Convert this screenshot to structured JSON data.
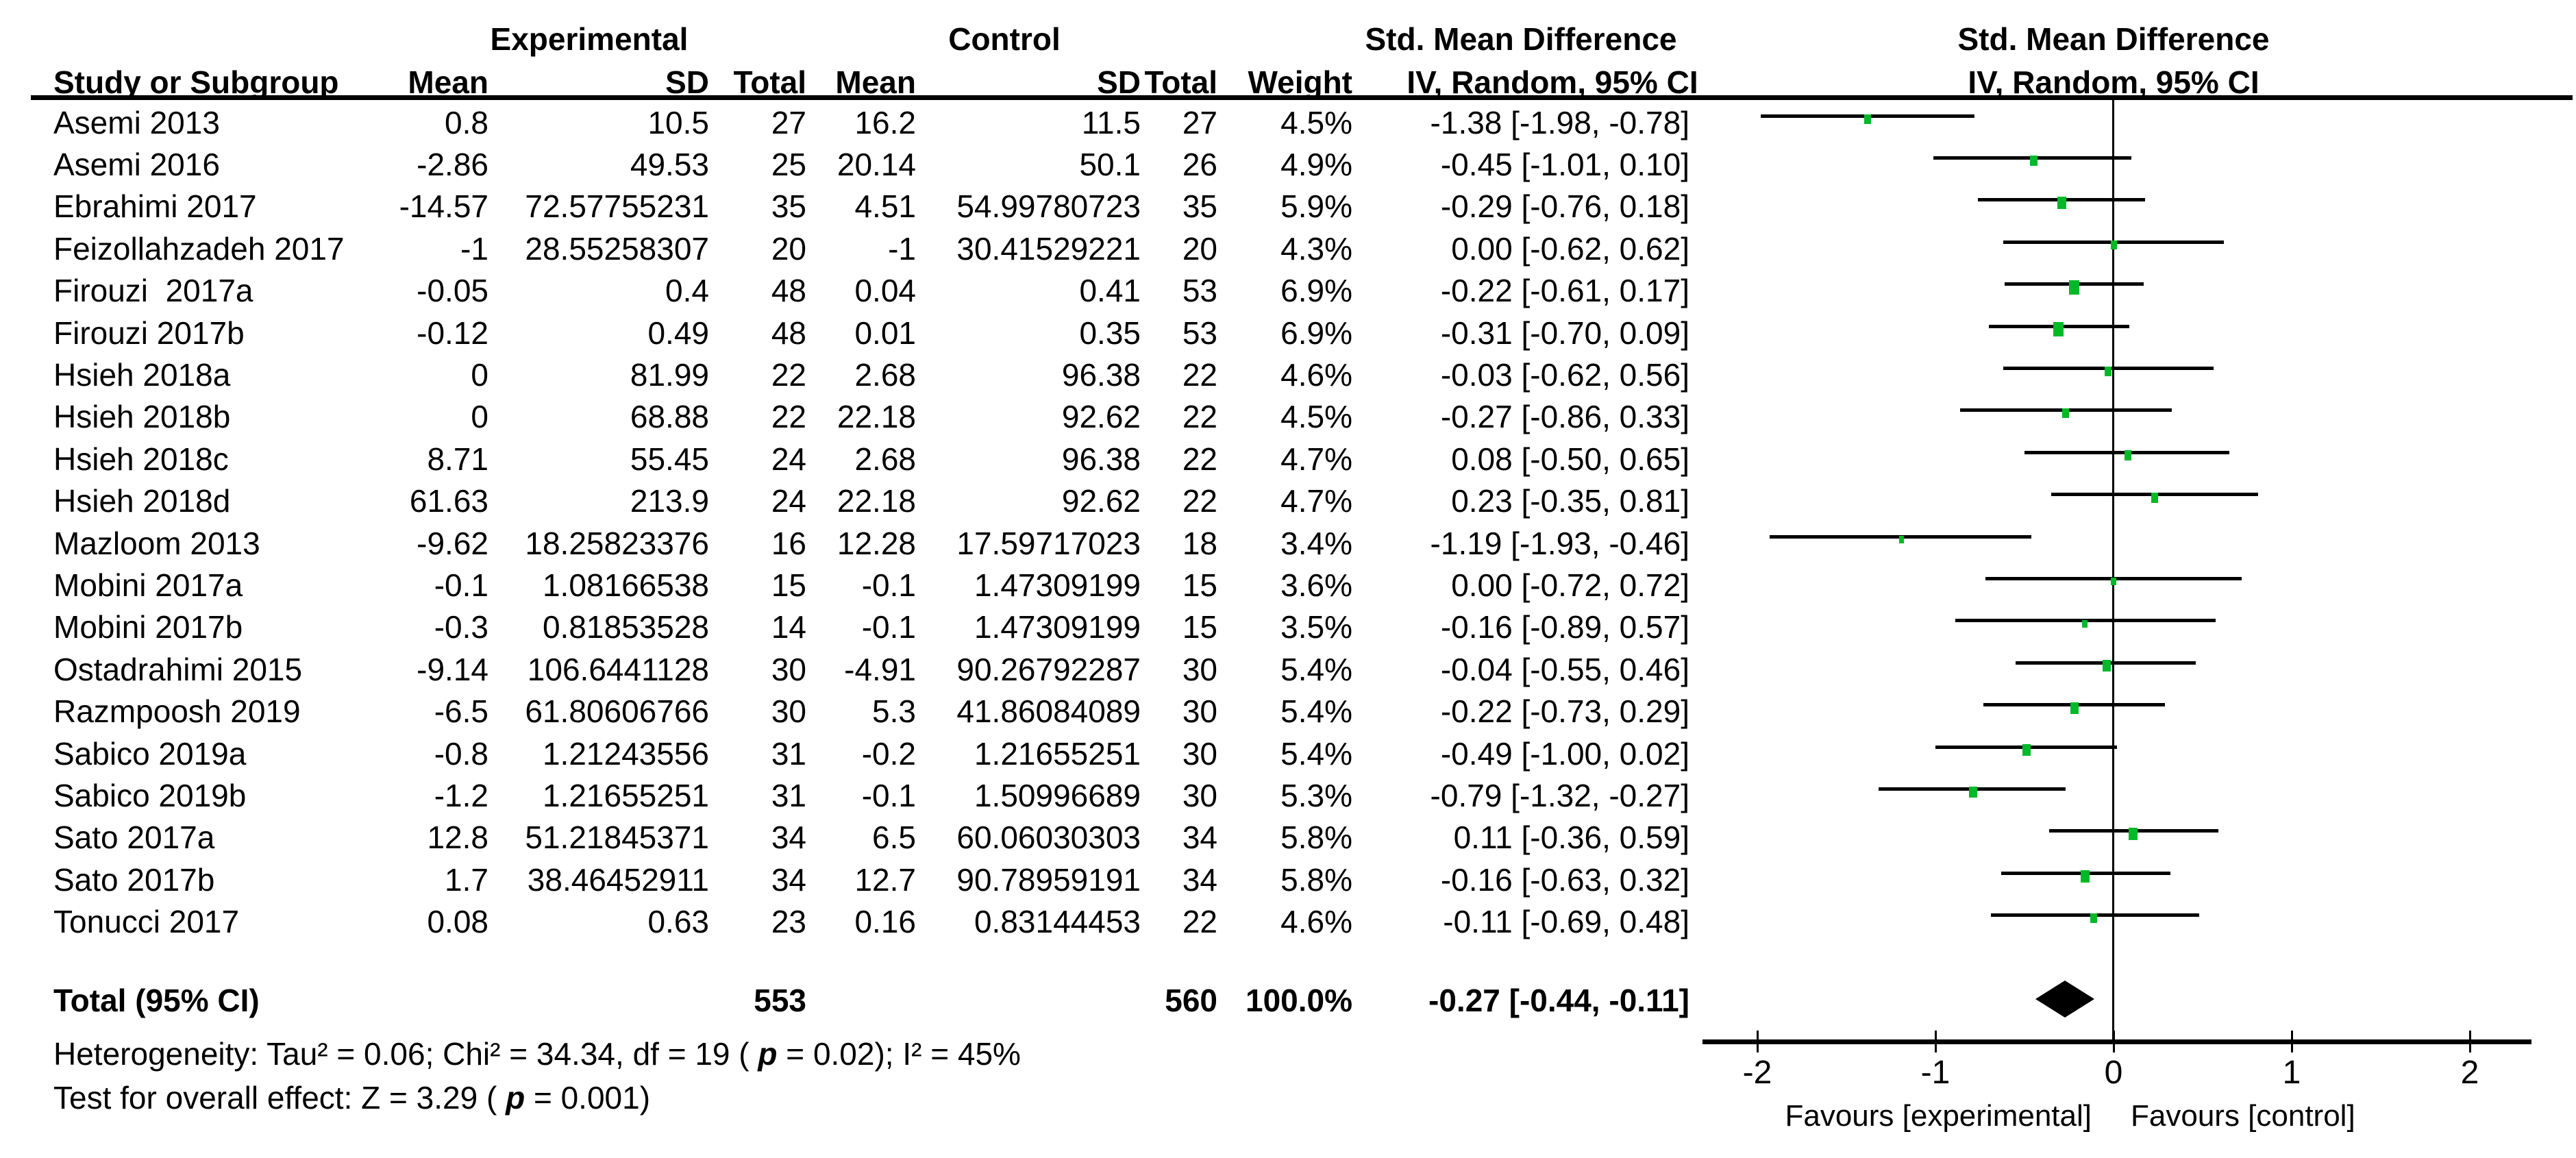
{
  "figure": {
    "group_headers": {
      "experimental": "Experimental",
      "control": "Control",
      "smd_left": "Std. Mean Difference",
      "smd_right": "Std. Mean Difference"
    },
    "column_headers": {
      "study": "Study or Subgroup",
      "mean_e": "Mean",
      "sd_e": "SD",
      "total_e": "Total",
      "mean_c": "Mean",
      "sd_c": "SD",
      "total_c": "Total",
      "weight": "Weight",
      "iv_left": "IV, Random, 95% CI",
      "iv_right": "IV, Random, 95% CI"
    },
    "heterogeneity": {
      "seg1": "Heterogeneity: Tau² = 0.06; Chi² = 34.34, df = 19 ( ",
      "p": "p",
      "seg2": " = 0.02); I² = 45%"
    },
    "overall_effect": {
      "seg1": "Test for overall effect: Z = 3.29 ( ",
      "p": "p",
      "seg2": " = 0.001)"
    },
    "colors": {
      "marker_green": "#00b928",
      "ink": "#000000"
    }
  },
  "chart_data": {
    "type": "forest",
    "effect_measure": "Std. Mean Difference (IV, Random, 95% CI)",
    "x_ticks": [
      -2,
      -1,
      0,
      1,
      2
    ],
    "xlim": [
      -2.3,
      2.35
    ],
    "favours_left": "Favours [experimental]",
    "favours_right": "Favours [control]",
    "studies": [
      {
        "name": "Asemi 2013",
        "mean_e": "0.8",
        "sd_e": "10.5",
        "total_e": "27",
        "mean_c": "16.2",
        "sd_c": "11.5",
        "total_c": "27",
        "weight": "4.5%",
        "weight_pct": 4.5,
        "smd_text": "-1.38 [-1.98, -0.78]",
        "est": -1.38,
        "lo": -1.98,
        "hi": -0.78
      },
      {
        "name": "Asemi 2016",
        "mean_e": "-2.86",
        "sd_e": "49.53",
        "total_e": "25",
        "mean_c": "20.14",
        "sd_c": "50.1",
        "total_c": "26",
        "weight": "4.9%",
        "weight_pct": 4.9,
        "smd_text": "-0.45 [-1.01, 0.10]",
        "est": -0.45,
        "lo": -1.01,
        "hi": 0.1
      },
      {
        "name": "Ebrahimi 2017",
        "mean_e": "-14.57",
        "sd_e": "72.57755231",
        "total_e": "35",
        "mean_c": "4.51",
        "sd_c": "54.99780723",
        "total_c": "35",
        "weight": "5.9%",
        "weight_pct": 5.9,
        "smd_text": "-0.29 [-0.76, 0.18]",
        "est": -0.29,
        "lo": -0.76,
        "hi": 0.18
      },
      {
        "name": "Feizollahzadeh 2017",
        "mean_e": "-1",
        "sd_e": "28.55258307",
        "total_e": "20",
        "mean_c": "-1",
        "sd_c": "30.41529221",
        "total_c": "20",
        "weight": "4.3%",
        "weight_pct": 4.3,
        "smd_text": "0.00 [-0.62, 0.62]",
        "est": 0.0,
        "lo": -0.62,
        "hi": 0.62
      },
      {
        "name": "Firouzi  2017a",
        "mean_e": "-0.05",
        "sd_e": "0.4",
        "total_e": "48",
        "mean_c": "0.04",
        "sd_c": "0.41",
        "total_c": "53",
        "weight": "6.9%",
        "weight_pct": 6.9,
        "smd_text": "-0.22 [-0.61, 0.17]",
        "est": -0.22,
        "lo": -0.61,
        "hi": 0.17
      },
      {
        "name": "Firouzi 2017b",
        "mean_e": "-0.12",
        "sd_e": "0.49",
        "total_e": "48",
        "mean_c": "0.01",
        "sd_c": "0.35",
        "total_c": "53",
        "weight": "6.9%",
        "weight_pct": 6.9,
        "smd_text": "-0.31 [-0.70, 0.09]",
        "est": -0.31,
        "lo": -0.7,
        "hi": 0.09
      },
      {
        "name": "Hsieh 2018a",
        "mean_e": "0",
        "sd_e": "81.99",
        "total_e": "22",
        "mean_c": "2.68",
        "sd_c": "96.38",
        "total_c": "22",
        "weight": "4.6%",
        "weight_pct": 4.6,
        "smd_text": "-0.03 [-0.62, 0.56]",
        "est": -0.03,
        "lo": -0.62,
        "hi": 0.56
      },
      {
        "name": "Hsieh 2018b",
        "mean_e": "0",
        "sd_e": "68.88",
        "total_e": "22",
        "mean_c": "22.18",
        "sd_c": "92.62",
        "total_c": "22",
        "weight": "4.5%",
        "weight_pct": 4.5,
        "smd_text": "-0.27 [-0.86, 0.33]",
        "est": -0.27,
        "lo": -0.86,
        "hi": 0.33
      },
      {
        "name": "Hsieh 2018c",
        "mean_e": "8.71",
        "sd_e": "55.45",
        "total_e": "24",
        "mean_c": "2.68",
        "sd_c": "96.38",
        "total_c": "22",
        "weight": "4.7%",
        "weight_pct": 4.7,
        "smd_text": "0.08 [-0.50, 0.65]",
        "est": 0.08,
        "lo": -0.5,
        "hi": 0.65
      },
      {
        "name": "Hsieh 2018d",
        "mean_e": "61.63",
        "sd_e": "213.9",
        "total_e": "24",
        "mean_c": "22.18",
        "sd_c": "92.62",
        "total_c": "22",
        "weight": "4.7%",
        "weight_pct": 4.7,
        "smd_text": "0.23 [-0.35, 0.81]",
        "est": 0.23,
        "lo": -0.35,
        "hi": 0.81
      },
      {
        "name": "Mazloom 2013",
        "mean_e": "-9.62",
        "sd_e": "18.25823376",
        "total_e": "16",
        "mean_c": "12.28",
        "sd_c": "17.59717023",
        "total_c": "18",
        "weight": "3.4%",
        "weight_pct": 3.4,
        "smd_text": "-1.19 [-1.93, -0.46]",
        "est": -1.19,
        "lo": -1.93,
        "hi": -0.46
      },
      {
        "name": "Mobini 2017a",
        "mean_e": "-0.1",
        "sd_e": "1.08166538",
        "total_e": "15",
        "mean_c": "-0.1",
        "sd_c": "1.47309199",
        "total_c": "15",
        "weight": "3.6%",
        "weight_pct": 3.6,
        "smd_text": "0.00 [-0.72, 0.72]",
        "est": 0.0,
        "lo": -0.72,
        "hi": 0.72
      },
      {
        "name": "Mobini 2017b",
        "mean_e": "-0.3",
        "sd_e": "0.81853528",
        "total_e": "14",
        "mean_c": "-0.1",
        "sd_c": "1.47309199",
        "total_c": "15",
        "weight": "3.5%",
        "weight_pct": 3.5,
        "smd_text": "-0.16 [-0.89, 0.57]",
        "est": -0.16,
        "lo": -0.89,
        "hi": 0.57
      },
      {
        "name": "Ostadrahimi 2015",
        "mean_e": "-9.14",
        "sd_e": "106.6441128",
        "total_e": "30",
        "mean_c": "-4.91",
        "sd_c": "90.26792287",
        "total_c": "30",
        "weight": "5.4%",
        "weight_pct": 5.4,
        "smd_text": "-0.04 [-0.55, 0.46]",
        "est": -0.04,
        "lo": -0.55,
        "hi": 0.46
      },
      {
        "name": "Razmpoosh 2019",
        "mean_e": "-6.5",
        "sd_e": "61.80606766",
        "total_e": "30",
        "mean_c": "5.3",
        "sd_c": "41.86084089",
        "total_c": "30",
        "weight": "5.4%",
        "weight_pct": 5.4,
        "smd_text": "-0.22 [-0.73, 0.29]",
        "est": -0.22,
        "lo": -0.73,
        "hi": 0.29
      },
      {
        "name": "Sabico 2019a",
        "mean_e": "-0.8",
        "sd_e": "1.21243556",
        "total_e": "31",
        "mean_c": "-0.2",
        "sd_c": "1.21655251",
        "total_c": "30",
        "weight": "5.4%",
        "weight_pct": 5.4,
        "smd_text": "-0.49 [-1.00, 0.02]",
        "est": -0.49,
        "lo": -1.0,
        "hi": 0.02
      },
      {
        "name": "Sabico 2019b",
        "mean_e": "-1.2",
        "sd_e": "1.21655251",
        "total_e": "31",
        "mean_c": "-0.1",
        "sd_c": "1.50996689",
        "total_c": "30",
        "weight": "5.3%",
        "weight_pct": 5.3,
        "smd_text": "-0.79 [-1.32, -0.27]",
        "est": -0.79,
        "lo": -1.32,
        "hi": -0.27
      },
      {
        "name": "Sato 2017a",
        "mean_e": "12.8",
        "sd_e": "51.21845371",
        "total_e": "34",
        "mean_c": "6.5",
        "sd_c": "60.06030303",
        "total_c": "34",
        "weight": "5.8%",
        "weight_pct": 5.8,
        "smd_text": "0.11 [-0.36, 0.59]",
        "est": 0.11,
        "lo": -0.36,
        "hi": 0.59
      },
      {
        "name": "Sato 2017b",
        "mean_e": "1.7",
        "sd_e": "38.46452911",
        "total_e": "34",
        "mean_c": "12.7",
        "sd_c": "90.78959191",
        "total_c": "34",
        "weight": "5.8%",
        "weight_pct": 5.8,
        "smd_text": "-0.16 [-0.63, 0.32]",
        "est": -0.16,
        "lo": -0.63,
        "hi": 0.32
      },
      {
        "name": "Tonucci 2017",
        "mean_e": "0.08",
        "sd_e": "0.63",
        "total_e": "23",
        "mean_c": "0.16",
        "sd_c": "0.83144453",
        "total_c": "22",
        "weight": "4.6%",
        "weight_pct": 4.6,
        "smd_text": "-0.11 [-0.69, 0.48]",
        "est": -0.11,
        "lo": -0.69,
        "hi": 0.48
      }
    ],
    "total": {
      "label": "Total (95% CI)",
      "total_e": "553",
      "total_c": "560",
      "weight": "100.0%",
      "smd_text": "-0.27 [-0.44, -0.11]",
      "est": -0.27,
      "lo": -0.44,
      "hi": -0.11
    }
  }
}
